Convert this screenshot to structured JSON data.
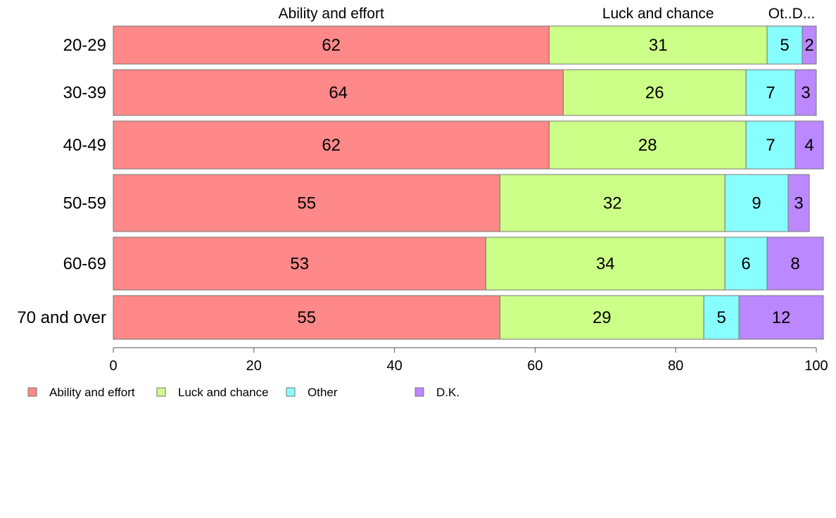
{
  "chart_data": {
    "type": "bar",
    "orientation": "horizontal",
    "stacked": true,
    "categories": [
      "20-29",
      "30-39",
      "40-49",
      "50-59",
      "60-69",
      "70 and over"
    ],
    "series": [
      {
        "name": "Ability and effort",
        "values": [
          62,
          64,
          62,
          55,
          53,
          55
        ],
        "color": "#ff8888"
      },
      {
        "name": "Luck and chance",
        "values": [
          31,
          26,
          28,
          32,
          34,
          29
        ],
        "color": "#ccff88"
      },
      {
        "name": "Other",
        "values": [
          5,
          7,
          7,
          9,
          6,
          5
        ],
        "color": "#88ffff"
      },
      {
        "name": "D.K.",
        "values": [
          2,
          3,
          4,
          3,
          8,
          12
        ],
        "color": "#bb88ff"
      }
    ],
    "top_labels": [
      "Ability and effort",
      "Luck and chance",
      "Ot..D..."
    ],
    "xlim": [
      0,
      100
    ],
    "xticks": [
      0,
      20,
      40,
      60,
      80,
      100
    ],
    "grid": false,
    "legend_position": "bottom-left"
  }
}
